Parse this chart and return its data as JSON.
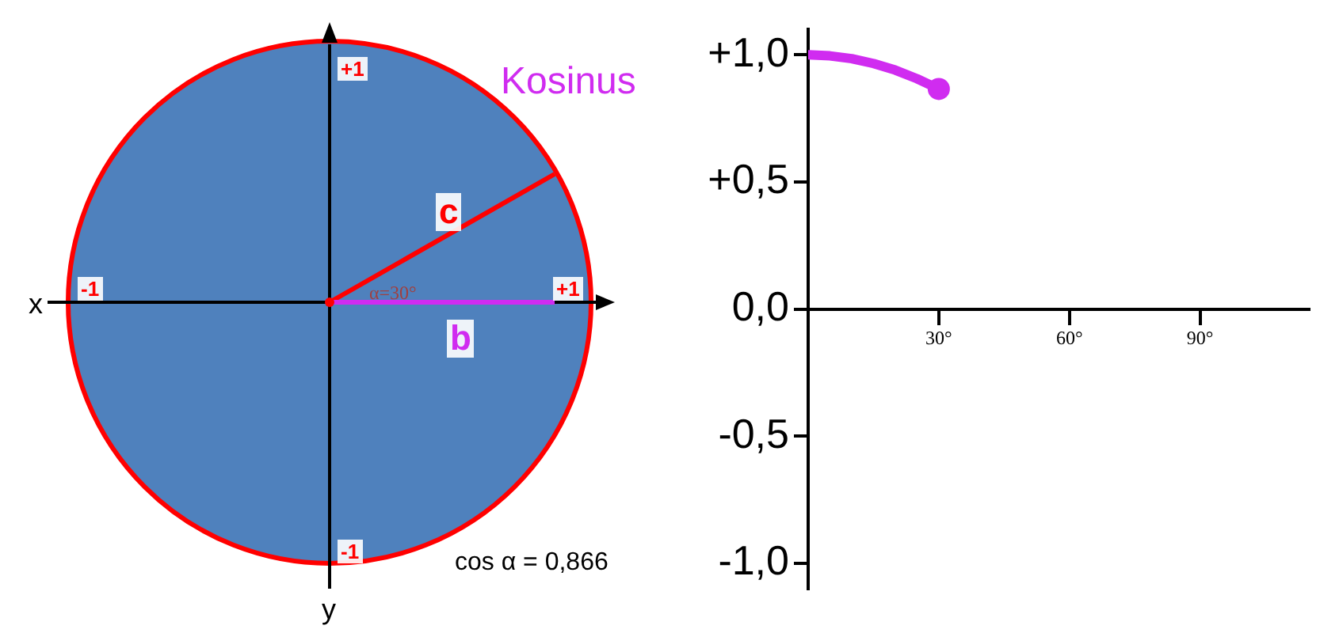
{
  "chart_data": {
    "type": "line",
    "series": [
      {
        "color": "#d02cf0",
        "x": [
          0,
          5,
          10,
          15,
          20,
          25,
          30
        ],
        "values": [
          1,
          0.996,
          0.985,
          0.966,
          0.94,
          0.906,
          0.866
        ]
      },
      {
        "type": "scatter",
        "color": "#d02cf0",
        "x": [
          30
        ],
        "values": [
          0.866
        ]
      }
    ],
    "xlim": [
      0,
      115
    ],
    "xticks": [
      {
        "value": 30,
        "label": "30°"
      },
      {
        "value": 60,
        "label": "60°"
      },
      {
        "value": 90,
        "label": "90°"
      }
    ],
    "ylim": [
      -1.1,
      1.1
    ],
    "yticks": [
      {
        "value": -1,
        "label": "-1,0"
      },
      {
        "value": -0.5,
        "label": "-0,5"
      },
      {
        "value": 0,
        "label": "0,0"
      },
      {
        "value": 0.5,
        "label": "+0,5"
      },
      {
        "value": 1,
        "label": "+1,0"
      }
    ],
    "grid": false,
    "annotations": [
      "x",
      "y",
      "+1",
      "-1",
      "+1",
      "-1",
      "c",
      "b",
      "α=30°",
      "Kosinus",
      "cos α = 0,866"
    ]
  }
}
